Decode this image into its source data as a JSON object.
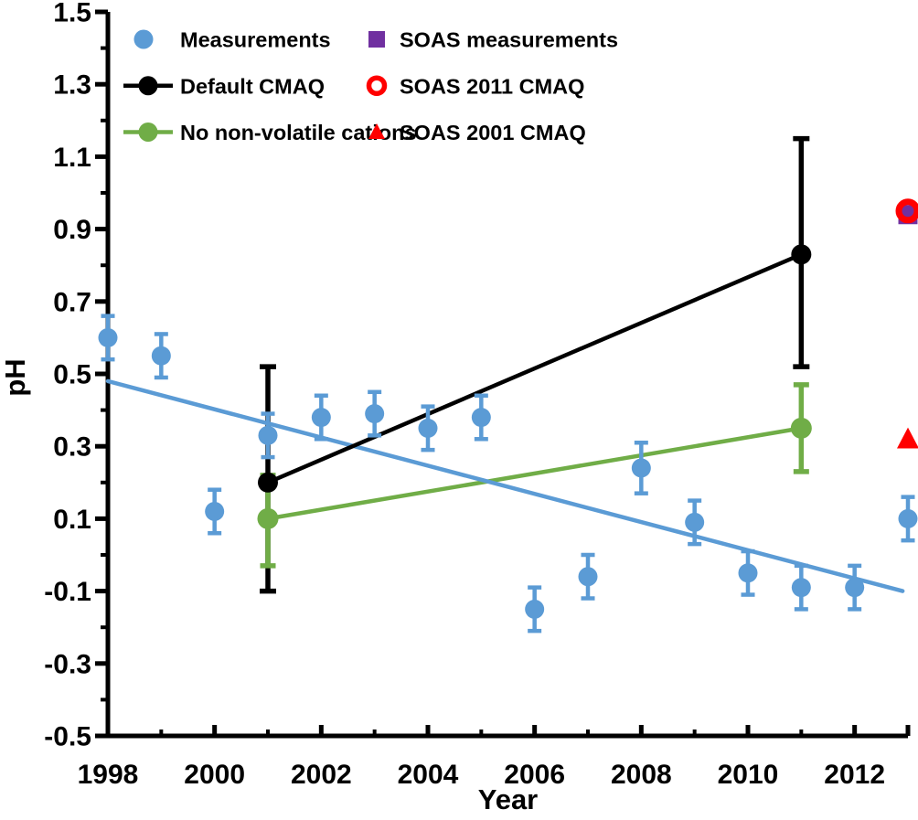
{
  "chart_data": {
    "type": "scatter",
    "title": "",
    "xlabel": "Year",
    "ylabel": "pH",
    "grid": false,
    "legend_position": "top-inside",
    "x_axis": {
      "label": "Year",
      "min": 1998,
      "max": 2013,
      "major_ticks": [
        1998,
        2000,
        2002,
        2004,
        2006,
        2008,
        2010,
        2012
      ],
      "tick_labels": [
        "1998",
        "2000",
        "2002",
        "2004",
        "2006",
        "2008",
        "2010",
        "2012"
      ],
      "minor_ticks": [
        1999,
        2001,
        2003,
        2005,
        2007,
        2009,
        2011
      ],
      "end_tick": 2013
    },
    "y_axis": {
      "label": "pH",
      "min": -0.5,
      "max": 1.5,
      "major_ticks": [
        1.5,
        1.3,
        1.1,
        0.9,
        0.7,
        0.5,
        0.3,
        0.1,
        -0.1,
        -0.3,
        -0.5
      ],
      "tick_labels": [
        "1.5",
        "1.3",
        "1.1",
        "0.9",
        "0.7",
        "0.5",
        "0.3",
        "0.1",
        "-0.1",
        "-0.3",
        "-0.5"
      ],
      "minor_ticks": [
        1.4,
        1.2,
        1.0,
        0.8,
        0.6,
        0.4,
        0.2,
        0.0,
        -0.2,
        -0.4
      ]
    },
    "series": [
      {
        "name": "Measurements",
        "kind": "points",
        "marker": "circle",
        "color": "#5B9BD5",
        "x": [
          1998,
          1999,
          2000,
          2001,
          2002,
          2003,
          2004,
          2005,
          2006,
          2007,
          2008,
          2009,
          2010,
          2011,
          2012,
          2013
        ],
        "y": [
          0.6,
          0.55,
          0.12,
          0.33,
          0.38,
          0.39,
          0.35,
          0.38,
          -0.15,
          -0.06,
          0.24,
          0.09,
          -0.05,
          -0.09,
          -0.09,
          0.1
        ],
        "yerr": [
          0.06,
          0.06,
          0.06,
          0.06,
          0.06,
          0.06,
          0.06,
          0.06,
          0.06,
          0.06,
          0.07,
          0.06,
          0.06,
          0.06,
          0.06,
          0.06
        ]
      },
      {
        "name": "Measurements trend",
        "kind": "trendline",
        "color": "#5B9BD5",
        "x": [
          1998,
          2012.9
        ],
        "y": [
          0.48,
          -0.1
        ]
      },
      {
        "name": "Default CMAQ",
        "kind": "line-points",
        "marker": "circle",
        "color": "#000000",
        "x": [
          2001,
          2011
        ],
        "y": [
          0.2,
          0.83
        ],
        "yerr_minus": [
          0.3,
          0.31
        ],
        "yerr_plus": [
          0.32,
          0.32
        ]
      },
      {
        "name": "No non-volatile cations",
        "kind": "line-points",
        "marker": "circle",
        "color": "#70AD47",
        "x": [
          2001,
          2011
        ],
        "y": [
          0.1,
          0.35
        ],
        "yerr_minus": [
          0.13,
          0.12
        ],
        "yerr_plus": [
          0.12,
          0.12
        ]
      },
      {
        "name": "SOAS measurements",
        "kind": "points",
        "marker": "square",
        "color": "#7030A0",
        "x": [
          2013
        ],
        "y": [
          0.94
        ]
      },
      {
        "name": "SOAS 2001 CMAQ",
        "kind": "points",
        "marker": "triangle",
        "color": "#FF0000",
        "x": [
          2013
        ],
        "y": [
          0.32
        ]
      },
      {
        "name": "SOAS 2011 CMAQ",
        "kind": "points",
        "marker": "open-circle",
        "color": "#FF0000",
        "x": [
          2013
        ],
        "y": [
          0.95
        ]
      }
    ],
    "legend": {
      "columns": [
        {
          "items": [
            {
              "label": "Measurements",
              "marker": "circle",
              "line": false,
              "color": "#5B9BD5"
            },
            {
              "label": "Default CMAQ",
              "marker": "circle",
              "line": true,
              "color": "#000000"
            },
            {
              "label": "No non-volatile cations",
              "marker": "circle",
              "line": true,
              "color": "#70AD47"
            }
          ]
        },
        {
          "items": [
            {
              "label": "SOAS measurements",
              "marker": "square",
              "line": false,
              "color": "#7030A0"
            },
            {
              "label": "SOAS 2011 CMAQ",
              "marker": "open-circle",
              "line": false,
              "color": "#FF0000"
            },
            {
              "label": "SOAS 2001 CMAQ",
              "marker": "triangle",
              "line": false,
              "color": "#FF0000"
            }
          ]
        }
      ]
    }
  }
}
